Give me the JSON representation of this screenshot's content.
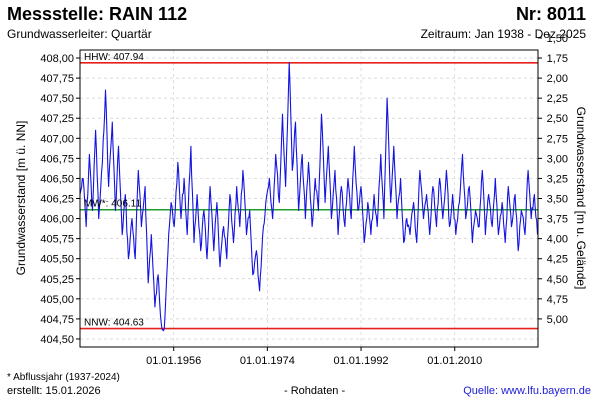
{
  "header": {
    "title": "Messstelle: RAIN 112",
    "number": "Nr: 8011",
    "aquifer": "Grundwasserleiter: Quartär",
    "period": "Zeitraum: Jan 1938 - Dez 2025"
  },
  "footer": {
    "note": "* Abflussjahr (1937-2024)",
    "created": "erstellt:  15.01.2026",
    "raw": "- Rohdaten -",
    "source": "Quelle: www.lfu.bayern.de"
  },
  "chart_data": {
    "type": "line",
    "ylabel": "Grundwasserstand [m ü. NN]",
    "ylabel_right": "Grundwasserstand [m u. Gelände]",
    "xlim": [
      1938,
      2026
    ],
    "ylim": [
      404.4,
      408.1
    ],
    "y_ticks": [
      "404,50",
      "404,75",
      "405,00",
      "405,25",
      "405,50",
      "405,75",
      "406,00",
      "406,25",
      "406,50",
      "406,75",
      "407,00",
      "407,25",
      "407,50",
      "407,75",
      "408,00"
    ],
    "y_ticks_right": [
      "1,50",
      "1,75",
      "2,00",
      "2,25",
      "2,50",
      "2,75",
      "3,00",
      "3,25",
      "3,50",
      "3,75",
      "4,00",
      "4,25",
      "4,50",
      "4,75",
      "5,00"
    ],
    "right_ground_level": 409.75,
    "x_ticks": [
      "01.01.1956",
      "01.01.1974",
      "01.01.1992",
      "01.01.2010"
    ],
    "x_tick_years": [
      1956,
      1974,
      1992,
      2010
    ],
    "grid": true,
    "hlines": [
      {
        "label": "HHW: 407.94",
        "value": 407.94,
        "color": "#e8201c"
      },
      {
        "label": "MW*: 406.11",
        "value": 406.11,
        "color": "#1f9e2a"
      },
      {
        "label": "NNW: 404.63",
        "value": 404.63,
        "color": "#e8201c"
      }
    ],
    "series": [
      {
        "color": "#1414e0",
        "x": [
          1938.0,
          1938.6,
          1939.2,
          1939.8,
          1940.4,
          1941.0,
          1941.6,
          1942.3,
          1942.9,
          1943.5,
          1944.2,
          1944.8,
          1945.4,
          1946.1,
          1946.7,
          1947.3,
          1948.0,
          1948.6,
          1949.2,
          1949.8,
          1950.5,
          1951.1,
          1951.7,
          1952.4,
          1953.0,
          1953.6,
          1954.2,
          1954.9,
          1955.5,
          1956.1,
          1956.8,
          1957.4,
          1958.0,
          1958.6,
          1959.3,
          1959.9,
          1960.5,
          1961.2,
          1961.8,
          1962.4,
          1963.0,
          1963.7,
          1964.3,
          1964.9,
          1965.6,
          1966.2,
          1966.8,
          1967.5,
          1968.1,
          1968.7,
          1969.3,
          1970.0,
          1970.6,
          1971.2,
          1971.9,
          1972.5,
          1973.1,
          1973.7,
          1974.4,
          1975.0,
          1975.6,
          1976.3,
          1976.9,
          1977.5,
          1978.2,
          1978.8,
          1979.4,
          1980.0,
          1980.7,
          1981.3,
          1981.9,
          1982.6,
          1983.2,
          1983.8,
          1984.4,
          1985.1,
          1985.7,
          1986.3,
          1987.0,
          1987.6,
          1988.2,
          1988.9,
          1989.5,
          1990.1,
          1990.7,
          1991.4,
          1992.0,
          1992.6,
          1993.3,
          1993.9,
          1994.5,
          1995.1,
          1995.8,
          1996.4,
          1997.0,
          1997.7,
          1998.3,
          1998.9,
          1999.6,
          2000.2,
          2000.8,
          2001.4,
          2002.1,
          2002.7,
          2003.3,
          2004.0,
          2004.6,
          2005.2,
          2005.8,
          2006.5,
          2007.1,
          2007.7,
          2008.4,
          2009.0,
          2009.6,
          2010.2,
          2010.9,
          2011.5,
          2012.1,
          2012.8,
          2013.4,
          2014.0,
          2014.7,
          2015.3,
          2015.9,
          2016.5,
          2017.2,
          2017.8,
          2018.4,
          2019.1,
          2019.7,
          2020.3,
          2020.9,
          2021.6,
          2022.2,
          2022.8,
          2023.5,
          2024.1,
          2024.7,
          2025.3,
          2025.9
        ],
        "y": [
          406.3,
          406.5,
          405.9,
          406.8,
          406.1,
          407.1,
          406.0,
          406.7,
          407.6,
          406.4,
          407.2,
          406.1,
          406.9,
          405.8,
          406.3,
          405.5,
          406.0,
          405.5,
          406.6,
          405.9,
          406.4,
          405.2,
          405.8,
          404.9,
          405.3,
          404.7,
          404.63,
          405.6,
          406.2,
          405.9,
          406.7,
          406.0,
          406.5,
          405.8,
          406.9,
          405.7,
          406.3,
          405.6,
          406.1,
          405.5,
          406.4,
          405.6,
          406.2,
          405.4,
          405.9,
          405.5,
          406.3,
          405.7,
          406.4,
          405.9,
          406.6,
          405.8,
          406.1,
          405.3,
          405.6,
          405.1,
          405.8,
          406.2,
          406.5,
          406.0,
          406.8,
          406.2,
          407.3,
          406.4,
          407.94,
          406.6,
          407.2,
          406.1,
          406.8,
          406.0,
          406.7,
          405.9,
          406.5,
          406.1,
          407.3,
          406.2,
          406.9,
          406.0,
          406.6,
          405.8,
          406.4,
          405.9,
          406.5,
          406.0,
          406.9,
          406.1,
          406.4,
          405.7,
          406.2,
          405.8,
          406.3,
          405.9,
          406.8,
          406.0,
          407.5,
          406.2,
          406.9,
          406.0,
          406.5,
          405.7,
          406.0,
          405.8,
          406.2,
          405.7,
          406.6,
          406.0,
          406.3,
          405.8,
          406.4,
          405.9,
          406.5,
          406.0,
          406.6,
          405.9,
          406.3,
          405.8,
          406.2,
          406.8,
          406.0,
          406.4,
          405.7,
          406.1,
          405.9,
          406.6,
          405.8,
          406.3,
          405.9,
          406.5,
          405.8,
          406.2,
          405.7,
          406.4,
          405.9,
          406.3,
          405.6,
          406.1,
          405.8,
          406.6,
          406.0,
          406.3,
          405.8
        ]
      }
    ]
  }
}
